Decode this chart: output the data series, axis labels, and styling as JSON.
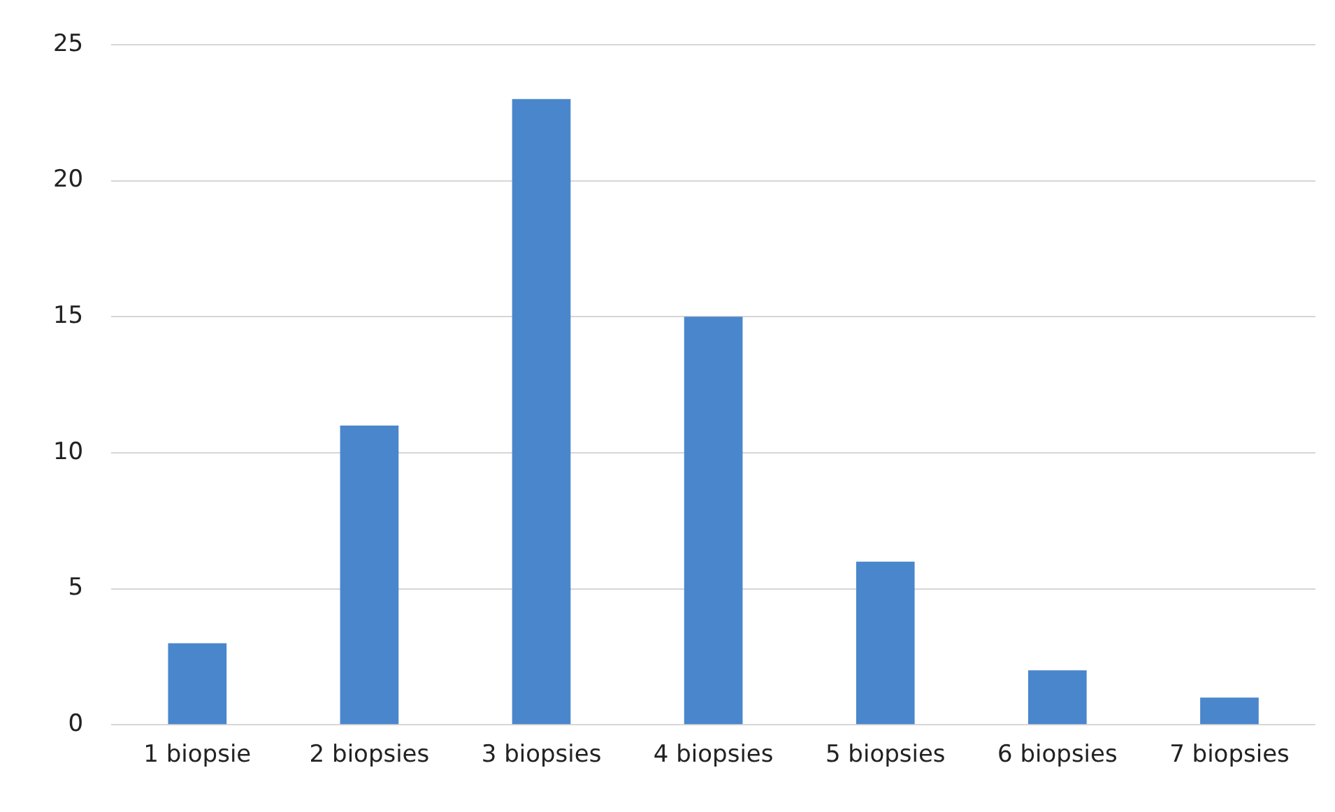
{
  "chart_data": {
    "type": "bar",
    "categories": [
      "1 biopsie",
      "2 biopsies",
      "3 biopsies",
      "4 biopsies",
      "5 biopsies",
      "6 biopsies",
      "7 biopsies"
    ],
    "values": [
      3,
      11,
      23,
      15,
      6,
      2,
      1
    ],
    "color": "#4a86cc",
    "ylim": [
      0,
      25
    ],
    "yticks": [
      0,
      5,
      10,
      15,
      20,
      25
    ],
    "grid": "y",
    "legend": false
  }
}
